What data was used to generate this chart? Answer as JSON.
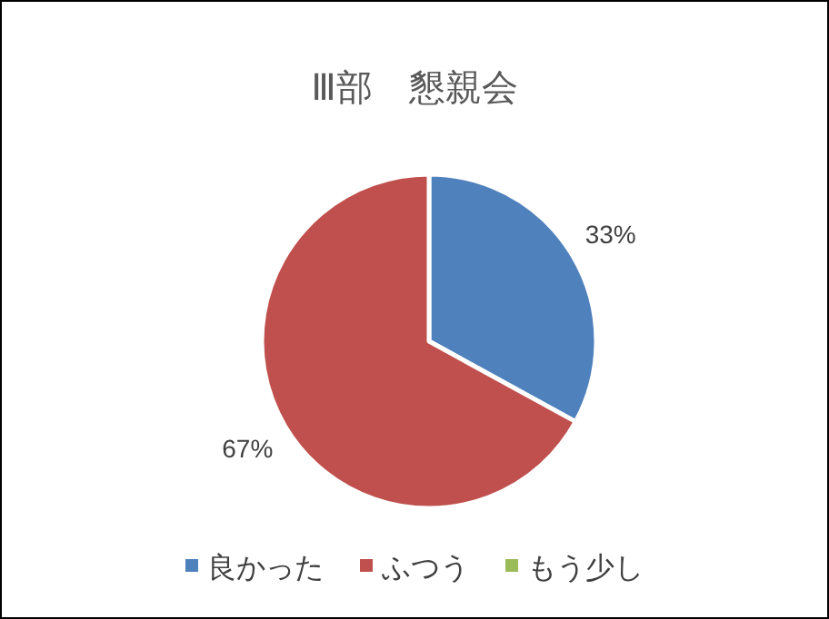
{
  "chart_data": {
    "type": "pie",
    "title": "Ⅲ部　懇親会",
    "categories": [
      "良かった",
      "ふつう",
      "もう少し"
    ],
    "values": [
      33,
      67,
      0
    ],
    "colors": [
      "#4f81bd",
      "#c0504d",
      "#9bbb59"
    ],
    "value_labels": [
      "33%",
      "67%",
      null
    ],
    "legend": "bottom"
  }
}
